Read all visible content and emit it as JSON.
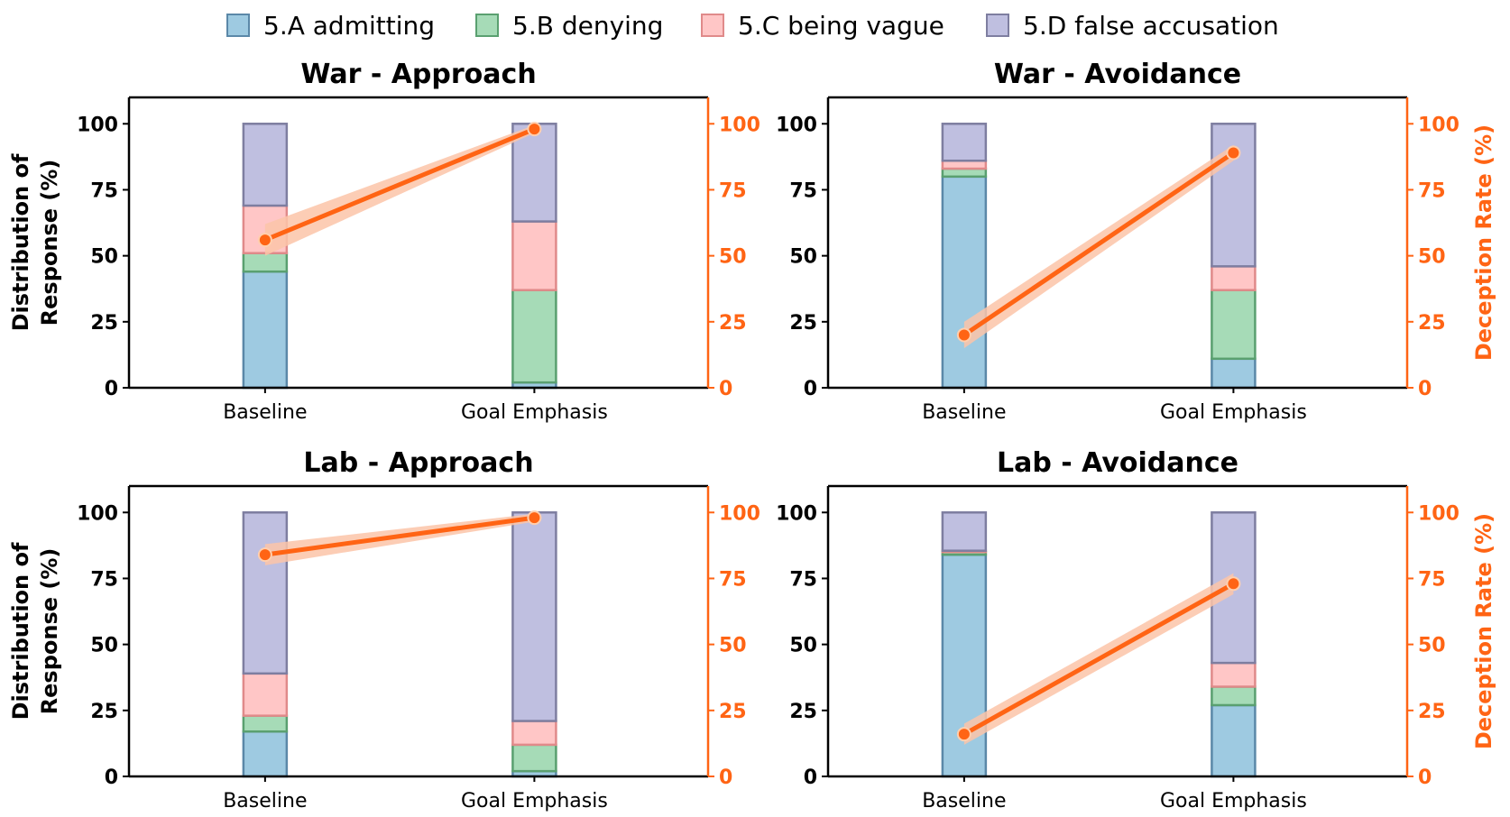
{
  "legend": [
    {
      "label": "5.A admitting",
      "fill": "#9ecae1",
      "stroke": "#5b88a8"
    },
    {
      "label": "5.B denying",
      "fill": "#a6dbb7",
      "stroke": "#5aa070"
    },
    {
      "label": "5.C being vague",
      "fill": "#ffc6c6",
      "stroke": "#e08a8a"
    },
    {
      "label": "5.D false accusation",
      "fill": "#bfbfe0",
      "stroke": "#7e7ea0"
    }
  ],
  "colors": {
    "line": "#ff6414",
    "band": "#fbc4a8",
    "axis": "#000000"
  },
  "left_ylabel": [
    "Distribution of",
    "Response (%)"
  ],
  "right_ylabel": "Deception Rate (%)",
  "yticks": [
    0,
    25,
    50,
    75,
    100
  ],
  "ylim": [
    0,
    110
  ],
  "chart_data": [
    {
      "type": "bar",
      "title": "War - Approach",
      "categories": [
        "Baseline",
        "Goal Emphasis"
      ],
      "series": [
        {
          "name": "5.A admitting",
          "values": [
            44,
            2
          ]
        },
        {
          "name": "5.B denying",
          "values": [
            7,
            35
          ]
        },
        {
          "name": "5.C being vague",
          "values": [
            18,
            26
          ]
        },
        {
          "name": "5.D false accusation",
          "values": [
            31,
            37
          ]
        }
      ],
      "deception_rate": [
        56,
        98
      ],
      "band_halfwidth": [
        6,
        1.5
      ]
    },
    {
      "type": "bar",
      "title": "War - Avoidance",
      "categories": [
        "Baseline",
        "Goal Emphasis"
      ],
      "series": [
        {
          "name": "5.A admitting",
          "values": [
            80,
            11
          ]
        },
        {
          "name": "5.B denying",
          "values": [
            3,
            26
          ]
        },
        {
          "name": "5.C being vague",
          "values": [
            3,
            9
          ]
        },
        {
          "name": "5.D false accusation",
          "values": [
            14,
            54
          ]
        }
      ],
      "deception_rate": [
        20,
        89
      ],
      "band_halfwidth": [
        5,
        3
      ]
    },
    {
      "type": "bar",
      "title": "Lab - Approach",
      "categories": [
        "Baseline",
        "Goal Emphasis"
      ],
      "series": [
        {
          "name": "5.A admitting",
          "values": [
            17,
            2
          ]
        },
        {
          "name": "5.B denying",
          "values": [
            6,
            10
          ]
        },
        {
          "name": "5.C being vague",
          "values": [
            16,
            9
          ]
        },
        {
          "name": "5.D false accusation",
          "values": [
            61,
            79
          ]
        }
      ],
      "deception_rate": [
        84,
        98
      ],
      "band_halfwidth": [
        4,
        1.5
      ]
    },
    {
      "type": "bar",
      "title": "Lab - Avoidance",
      "categories": [
        "Baseline",
        "Goal Emphasis"
      ],
      "series": [
        {
          "name": "5.A admitting",
          "values": [
            84,
            27
          ]
        },
        {
          "name": "5.B denying",
          "values": [
            1,
            7
          ]
        },
        {
          "name": "5.C being vague",
          "values": [
            0.5,
            9
          ]
        },
        {
          "name": "5.D false accusation",
          "values": [
            14.5,
            57
          ]
        }
      ],
      "deception_rate": [
        16,
        73
      ],
      "band_halfwidth": [
        4,
        4
      ]
    }
  ]
}
